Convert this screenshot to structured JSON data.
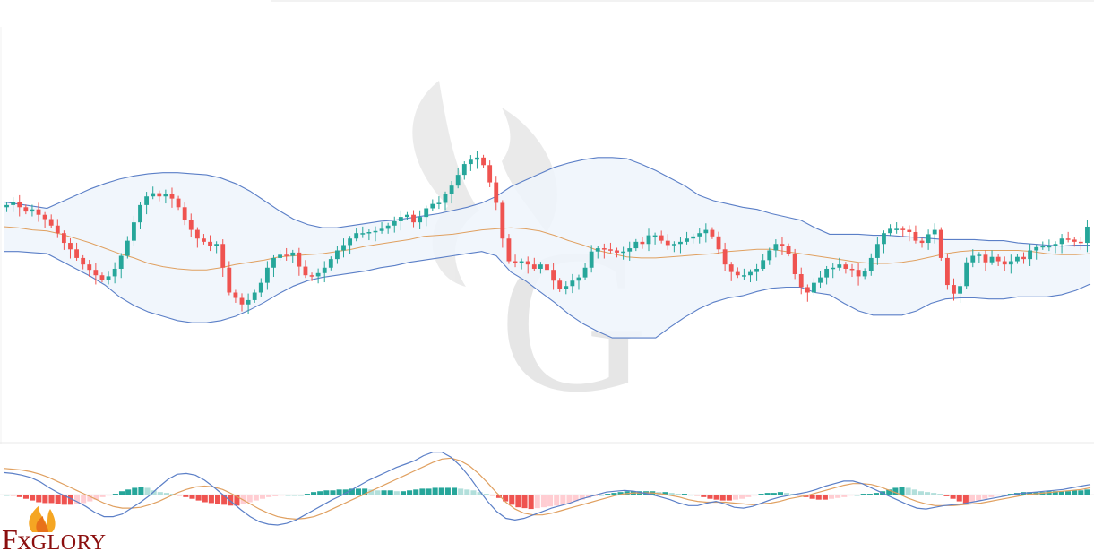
{
  "chart_data": [
    {
      "type": "candlestick",
      "panel": "price",
      "overlay": "bollinger-bands",
      "title": "",
      "xlabel": "",
      "ylabel": "",
      "colors": {
        "up": "#26a69a",
        "down": "#ef5350",
        "band_line": "#5b7fc7",
        "band_fill": "#eef5fb",
        "middle_line": "#e0a060"
      },
      "close": [
        189.5,
        189.8,
        189.3,
        188.9,
        189.1,
        188.6,
        188.2,
        187.6,
        186.9,
        186.0,
        185.4,
        184.6,
        184.0,
        183.5,
        183.0,
        182.6,
        182.9,
        183.6,
        184.8,
        186.2,
        187.9,
        189.5,
        190.3,
        190.6,
        190.3,
        190.5,
        190.1,
        189.3,
        188.1,
        187.2,
        186.4,
        186.1,
        185.7,
        185.9,
        183.7,
        181.4,
        180.9,
        180.3,
        180.7,
        181.4,
        182.3,
        183.7,
        184.6,
        184.9,
        184.8,
        185.1,
        183.8,
        183.0,
        182.9,
        183.2,
        183.7,
        184.5,
        185.3,
        185.8,
        186.4,
        186.9,
        186.9,
        187.0,
        187.1,
        187.3,
        187.6,
        188.0,
        188.4,
        188.6,
        187.9,
        188.4,
        189.2,
        189.6,
        189.7,
        190.5,
        191.3,
        192.3,
        193.3,
        193.7,
        193.9,
        193.2,
        191.6,
        189.7,
        186.4,
        184.3,
        184.2,
        184.3,
        184.0,
        183.6,
        184.0,
        183.5,
        182.5,
        181.7,
        182.0,
        182.5,
        182.8,
        183.7,
        185.2,
        185.5,
        185.4,
        185.3,
        185.1,
        185.2,
        185.5,
        186.1,
        185.9,
        186.7,
        186.7,
        186.2,
        185.8,
        185.9,
        186.1,
        186.4,
        186.6,
        186.9,
        187.2,
        186.6,
        185.4,
        184.0,
        183.3,
        183.0,
        183.0,
        183.3,
        183.6,
        184.4,
        185.3,
        185.9,
        185.7,
        185.0,
        183.1,
        181.9,
        181.4,
        182.3,
        182.8,
        183.6,
        183.7,
        184.0,
        183.6,
        183.5,
        182.9,
        183.4,
        184.6,
        185.9,
        186.9,
        187.3,
        187.3,
        187.2,
        187.0,
        186.2,
        186.0,
        186.8,
        187.2,
        184.6,
        182.1,
        181.3,
        182.0,
        184.2,
        184.8,
        184.9,
        184.2,
        184.7,
        184.3,
        184.0,
        184.3,
        184.7,
        184.5,
        185.3,
        185.6,
        185.7,
        185.7,
        185.9,
        186.4,
        186.3,
        186.1,
        186.0,
        187.5
      ],
      "band_upper": [
        189.8,
        189.6,
        189.4,
        189.2,
        189.8,
        190.4,
        191.0,
        191.5,
        191.9,
        192.2,
        192.4,
        192.5,
        192.5,
        192.4,
        192.3,
        192.0,
        191.5,
        190.8,
        189.9,
        189.0,
        188.2,
        187.7,
        187.4,
        187.4,
        187.6,
        187.8,
        188.0,
        188.1,
        188.3,
        188.5,
        188.7,
        189.0,
        189.3,
        189.7,
        190.3,
        191.2,
        191.8,
        192.4,
        193.0,
        193.4,
        193.7,
        193.9,
        193.9,
        193.8,
        193.3,
        192.7,
        192.0,
        191.3,
        190.4,
        189.9,
        189.6,
        189.3,
        189.1,
        188.7,
        188.4,
        188.1,
        187.4,
        186.8,
        186.8,
        186.8,
        186.7,
        186.7,
        186.6,
        186.5,
        186.4,
        186.3,
        186.3,
        186.3,
        186.2,
        186.2,
        186.0,
        185.9,
        185.8,
        185.7,
        185.8,
        185.8
      ],
      "band_middle": [
        187.5,
        187.4,
        187.2,
        187.1,
        186.8,
        186.4,
        186.0,
        185.5,
        185.0,
        184.6,
        184.1,
        183.8,
        183.6,
        183.5,
        183.5,
        183.7,
        184.0,
        184.2,
        184.4,
        184.7,
        184.8,
        184.9,
        185.0,
        185.2,
        185.4,
        185.7,
        185.9,
        186.1,
        186.3,
        186.6,
        186.7,
        186.8,
        187.0,
        187.2,
        187.3,
        187.4,
        187.3,
        187.1,
        186.7,
        186.2,
        185.8,
        185.3,
        185.0,
        184.7,
        184.6,
        184.6,
        184.7,
        184.8,
        184.9,
        185.0,
        185.2,
        185.3,
        185.4,
        185.4,
        185.2,
        185.0,
        184.8,
        184.6,
        184.4,
        184.2,
        184.1,
        184.1,
        184.2,
        184.4,
        184.7,
        185.0,
        185.2,
        185.3,
        185.3,
        185.3,
        185.3,
        185.2,
        185.0,
        184.9,
        184.9,
        185.0
      ],
      "band_lower": [
        185.2,
        185.2,
        185.1,
        185.0,
        184.3,
        183.6,
        182.9,
        182.1,
        181.0,
        180.2,
        179.6,
        179.2,
        178.8,
        178.6,
        178.6,
        178.8,
        179.2,
        179.8,
        180.5,
        181.3,
        182.0,
        182.5,
        182.8,
        183.0,
        183.2,
        183.4,
        183.7,
        183.9,
        184.2,
        184.4,
        184.6,
        184.8,
        185.0,
        185.2,
        184.8,
        183.3,
        182.5,
        181.5,
        180.5,
        179.4,
        178.5,
        177.8,
        177.2,
        177.2,
        177.2,
        177.2,
        178.2,
        179.1,
        179.9,
        180.5,
        180.9,
        181.1,
        181.5,
        181.8,
        181.9,
        181.9,
        181.4,
        181.2,
        180.4,
        179.7,
        179.3,
        179.3,
        179.3,
        179.7,
        180.4,
        180.8,
        180.9,
        180.9,
        180.8,
        180.8,
        181.0,
        181.0,
        181.0,
        181.2,
        181.6,
        182.2
      ],
      "ylim": [
        168,
        206
      ]
    },
    {
      "type": "macd",
      "panel": "indicator",
      "title": "",
      "colors": {
        "up_strong": "#26a69a",
        "up_weak": "#b2dfdb",
        "down_strong": "#ef5350",
        "down_weak": "#ffcdd2",
        "macd_line": "#5b7fc7",
        "signal_line": "#e0a060"
      },
      "histogram": [
        0,
        -0.1,
        -0.3,
        -0.5,
        -0.7,
        -0.9,
        -1.0,
        -1.0,
        -1.1,
        -1.2,
        -1.2,
        -1.1,
        -1.0,
        -0.8,
        -0.6,
        -0.3,
        -0.1,
        0.1,
        0.4,
        0.6,
        0.8,
        0.9,
        0.8,
        0.5,
        0.3,
        0.2,
        0.1,
        -0.1,
        -0.3,
        -0.5,
        -0.7,
        -0.9,
        -1.0,
        -1.1,
        -1.2,
        -1.3,
        -1.3,
        -1.1,
        -0.9,
        -0.7,
        -0.5,
        -0.3,
        -0.2,
        -0.1,
        0,
        0,
        0,
        0.1,
        0.3,
        0.4,
        0.5,
        0.5,
        0.6,
        0.6,
        0.7,
        0.7,
        0.7,
        0.6,
        0.5,
        0.5,
        0.5,
        0.4,
        0.4,
        0.5,
        0.6,
        0.7,
        0.7,
        0.8,
        0.8,
        0.8,
        0.8,
        0.7,
        0.6,
        0.5,
        0.3,
        0.1,
        -0.1,
        -0.4,
        -0.8,
        -1.2,
        -1.5,
        -1.6,
        -1.7,
        -1.6,
        -1.5,
        -1.4,
        -1.3,
        -1.2,
        -1.0,
        -0.8,
        -0.6,
        -0.4,
        -0.2,
        0,
        0.1,
        0.2,
        0.3,
        0.4,
        0.4,
        0.4,
        0.4,
        0.4,
        0.3,
        0.3,
        0.2,
        0.1,
        0.1,
        0,
        -0.1,
        -0.3,
        -0.5,
        -0.6,
        -0.7,
        -0.7,
        -0.6,
        -0.5,
        -0.3,
        -0.1,
        0.1,
        0.2,
        0.2,
        0.3,
        0.2,
        0.1,
        -0.1,
        -0.3,
        -0.5,
        -0.6,
        -0.6,
        -0.5,
        -0.4,
        -0.3,
        -0.1,
        0,
        0.1,
        0.1,
        0.2,
        0.4,
        0.6,
        0.8,
        0.9,
        0.8,
        0.6,
        0.4,
        0.3,
        0.2,
        0.1,
        -0.2,
        -0.5,
        -0.8,
        -1.0,
        -0.9,
        -0.7,
        -0.5,
        -0.3,
        -0.1,
        0,
        0.1,
        0.2,
        0.3,
        0.3,
        0.3,
        0.3,
        0.4,
        0.4,
        0.4,
        0.4,
        0.5,
        0.5,
        0.6
      ],
      "macd_line": [
        2.6,
        2.5,
        2.3,
        2.0,
        1.5,
        0.8,
        0.2,
        -0.3,
        -0.8,
        -1.4,
        -2.1,
        -2.6,
        -2.6,
        -2.3,
        -1.6,
        -0.9,
        -0.1,
        0.9,
        1.8,
        2.4,
        2.5,
        2.3,
        1.7,
        0.9,
        0.0,
        -0.9,
        -1.8,
        -2.6,
        -3.2,
        -3.5,
        -3.6,
        -3.4,
        -3.0,
        -2.4,
        -1.8,
        -1.2,
        -0.6,
        -0.1,
        0.5,
        1.1,
        1.7,
        2.2,
        2.7,
        3.2,
        3.6,
        4.0,
        4.6,
        5.0,
        5.0,
        4.4,
        3.4,
        2.1,
        0.6,
        -0.8,
        -2.0,
        -2.8,
        -3.0,
        -2.8,
        -2.4,
        -2.0,
        -1.6,
        -1.3,
        -1.0,
        -0.6,
        -0.3,
        0.0,
        0.3,
        0.4,
        0.5,
        0.4,
        0.2,
        0.0,
        -0.3,
        -0.6,
        -1.0,
        -1.3,
        -1.3,
        -1.0,
        -0.8,
        -1.1,
        -1.5,
        -1.6,
        -1.4,
        -1.0,
        -0.6,
        -0.3,
        -0.1,
        0.1,
        0.3,
        0.6,
        1.0,
        1.3,
        1.6,
        1.6,
        1.3,
        0.8,
        0.3,
        -0.2,
        -0.7,
        -1.2,
        -1.6,
        -1.7,
        -1.5,
        -1.3,
        -1.2,
        -1.1,
        -0.9,
        -0.7,
        -0.5,
        -0.3,
        -0.1,
        0.1,
        0.2,
        0.3,
        0.4,
        0.5,
        0.6,
        0.8,
        1.0,
        1.2
      ],
      "signal_line": [
        3.1,
        3.0,
        2.9,
        2.7,
        2.4,
        2.0,
        1.5,
        1.0,
        0.5,
        0.0,
        -0.5,
        -1.0,
        -1.4,
        -1.6,
        -1.6,
        -1.5,
        -1.2,
        -0.8,
        -0.3,
        0.2,
        0.6,
        0.9,
        1.0,
        0.9,
        0.6,
        0.1,
        -0.5,
        -1.1,
        -1.7,
        -2.2,
        -2.6,
        -2.8,
        -2.9,
        -2.8,
        -2.6,
        -2.2,
        -1.7,
        -1.2,
        -0.7,
        -0.2,
        0.3,
        0.8,
        1.3,
        1.8,
        2.3,
        2.8,
        3.3,
        3.8,
        4.2,
        4.3,
        4.0,
        3.4,
        2.5,
        1.4,
        0.2,
        -0.9,
        -1.7,
        -2.2,
        -2.4,
        -2.4,
        -2.2,
        -1.9,
        -1.6,
        -1.3,
        -1.0,
        -0.7,
        -0.4,
        -0.1,
        0.1,
        0.2,
        0.2,
        0.2,
        0.1,
        -0.1,
        -0.3,
        -0.6,
        -0.8,
        -0.9,
        -0.9,
        -0.9,
        -1.0,
        -1.1,
        -1.2,
        -1.1,
        -1.0,
        -0.8,
        -0.5,
        -0.3,
        -0.1,
        0.2,
        0.5,
        0.8,
        1.1,
        1.3,
        1.3,
        1.2,
        0.9,
        0.5,
        0.1,
        -0.4,
        -0.8,
        -1.1,
        -1.3,
        -1.3,
        -1.3,
        -1.2,
        -1.1,
        -1.0,
        -0.8,
        -0.6,
        -0.4,
        -0.2,
        0.0,
        0.1,
        0.2,
        0.3,
        0.4,
        0.5,
        0.6,
        0.8
      ],
      "ylim": [
        -5.5,
        5.5
      ]
    }
  ],
  "watermark": {
    "letter": "G",
    "color": "#e4e4e4"
  },
  "branding": {
    "logo_text_prefix": "Fx",
    "logo_text_suffix": "Glory",
    "logo_color": "#8b0e0e",
    "flame_colors": [
      "#f5a623",
      "#e8711a",
      "#c0392b"
    ]
  }
}
